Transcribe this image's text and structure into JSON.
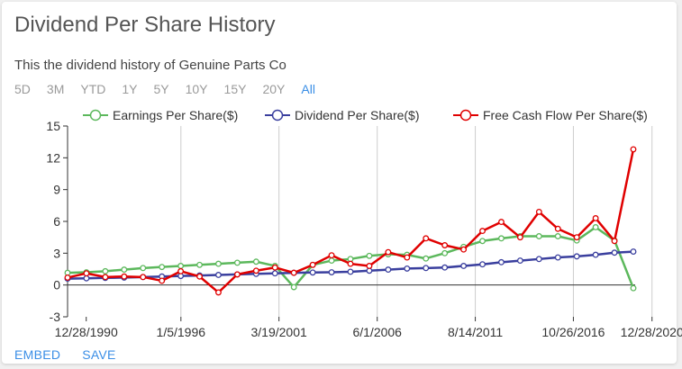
{
  "header": {
    "title": "Dividend Per Share History",
    "subtitle": "This the dividend history of Genuine Parts Co"
  },
  "ranges": {
    "items": [
      "5D",
      "3M",
      "YTD",
      "1Y",
      "5Y",
      "10Y",
      "15Y",
      "20Y",
      "All"
    ],
    "active": "All"
  },
  "footer": {
    "embed_label": "EMBED",
    "save_label": "SAVE"
  },
  "colors": {
    "eps": "#5cb85c",
    "dps": "#3a3f9e",
    "fcf": "#e00000",
    "grid": "#cccccc",
    "axis": "#333333",
    "active_link": "#3a8ee6"
  },
  "chart_data": {
    "type": "line",
    "title": "",
    "xlabel": "",
    "ylabel": "",
    "x_tick_labels": [
      "12/28/1990",
      "1/5/1996",
      "3/19/2001",
      "6/1/2006",
      "8/14/2011",
      "10/26/2016",
      "12/28/2020"
    ],
    "y_ticks": [
      -3,
      0,
      3,
      6,
      9,
      12,
      15
    ],
    "ylim": [
      -3,
      15
    ],
    "xlim": [
      "1990",
      "2020"
    ],
    "grid": "vertical lines at x ticks",
    "legend_position": "top",
    "x": [
      "1990",
      "1991",
      "1992",
      "1993",
      "1994",
      "1995",
      "1996",
      "1997",
      "1998",
      "1999",
      "2000",
      "2001",
      "2002",
      "2003",
      "2004",
      "2005",
      "2006",
      "2007",
      "2008",
      "2009",
      "2010",
      "2011",
      "2012",
      "2013",
      "2014",
      "2015",
      "2016",
      "2017",
      "2018",
      "2019",
      "2020"
    ],
    "series": [
      {
        "name": "Earnings Per Share($)",
        "color": "#5cb85c",
        "values": [
          1.15,
          1.2,
          1.3,
          1.45,
          1.6,
          1.7,
          1.8,
          1.9,
          2.0,
          2.1,
          2.2,
          1.8,
          -0.2,
          1.9,
          2.3,
          2.45,
          2.75,
          2.9,
          2.85,
          2.5,
          3.0,
          3.6,
          4.15,
          4.4,
          4.6,
          4.6,
          4.6,
          4.2,
          5.45,
          4.2,
          -0.3
        ]
      },
      {
        "name": "Dividend Per Share($)",
        "color": "#3a3f9e",
        "values": [
          0.6,
          0.63,
          0.67,
          0.7,
          0.75,
          0.8,
          0.85,
          0.9,
          0.95,
          1.0,
          1.05,
          1.1,
          1.15,
          1.18,
          1.2,
          1.25,
          1.35,
          1.45,
          1.55,
          1.6,
          1.65,
          1.8,
          1.95,
          2.15,
          2.3,
          2.45,
          2.6,
          2.7,
          2.85,
          3.05,
          3.15
        ]
      },
      {
        "name": "Free Cash Flow Per Share($)",
        "color": "#e00000",
        "values": [
          0.7,
          1.1,
          0.75,
          0.8,
          0.75,
          0.4,
          1.3,
          0.8,
          -0.7,
          1.0,
          1.35,
          1.65,
          1.15,
          1.9,
          2.8,
          2.0,
          1.8,
          3.1,
          2.6,
          4.4,
          3.75,
          3.35,
          5.1,
          5.95,
          4.5,
          6.9,
          5.3,
          4.5,
          6.3,
          4.15,
          12.8
        ]
      }
    ]
  }
}
